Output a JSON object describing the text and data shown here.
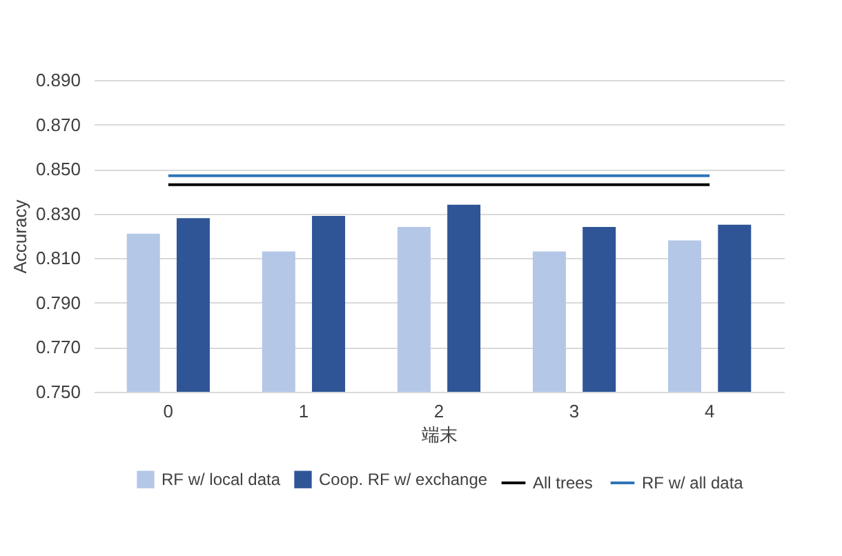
{
  "chart_data": {
    "type": "bar",
    "xlabel": "端末",
    "ylabel": "Accuracy",
    "categories": [
      "0",
      "1",
      "2",
      "3",
      "4"
    ],
    "series": [
      {
        "name": "RF w/ local data",
        "color": "#b4c7e7",
        "values": [
          0.821,
          0.813,
          0.824,
          0.813,
          0.818
        ]
      },
      {
        "name": "Coop. RF w/ exchange",
        "color": "#2f5597",
        "values": [
          0.828,
          0.829,
          0.834,
          0.824,
          0.825
        ]
      },
      {
        "name": "All trees",
        "type": "line",
        "color": "#000000",
        "values": [
          0.843,
          0.843,
          0.843,
          0.843,
          0.843
        ]
      },
      {
        "name": "RF w/ all data",
        "type": "line",
        "color": "#2e75b6",
        "values": [
          0.847,
          0.847,
          0.847,
          0.847,
          0.847
        ]
      }
    ],
    "ylim": [
      0.75,
      0.89
    ],
    "yticks": [
      {
        "value": 0.75,
        "label": "0.750"
      },
      {
        "value": 0.77,
        "label": "0.770"
      },
      {
        "value": 0.79,
        "label": "0.790"
      },
      {
        "value": 0.81,
        "label": "0.810"
      },
      {
        "value": 0.83,
        "label": "0.830"
      },
      {
        "value": 0.85,
        "label": "0.850"
      },
      {
        "value": 0.87,
        "label": "0.870"
      },
      {
        "value": 0.89,
        "label": "0.890"
      }
    ],
    "grid": "y",
    "legend": "bottom"
  }
}
